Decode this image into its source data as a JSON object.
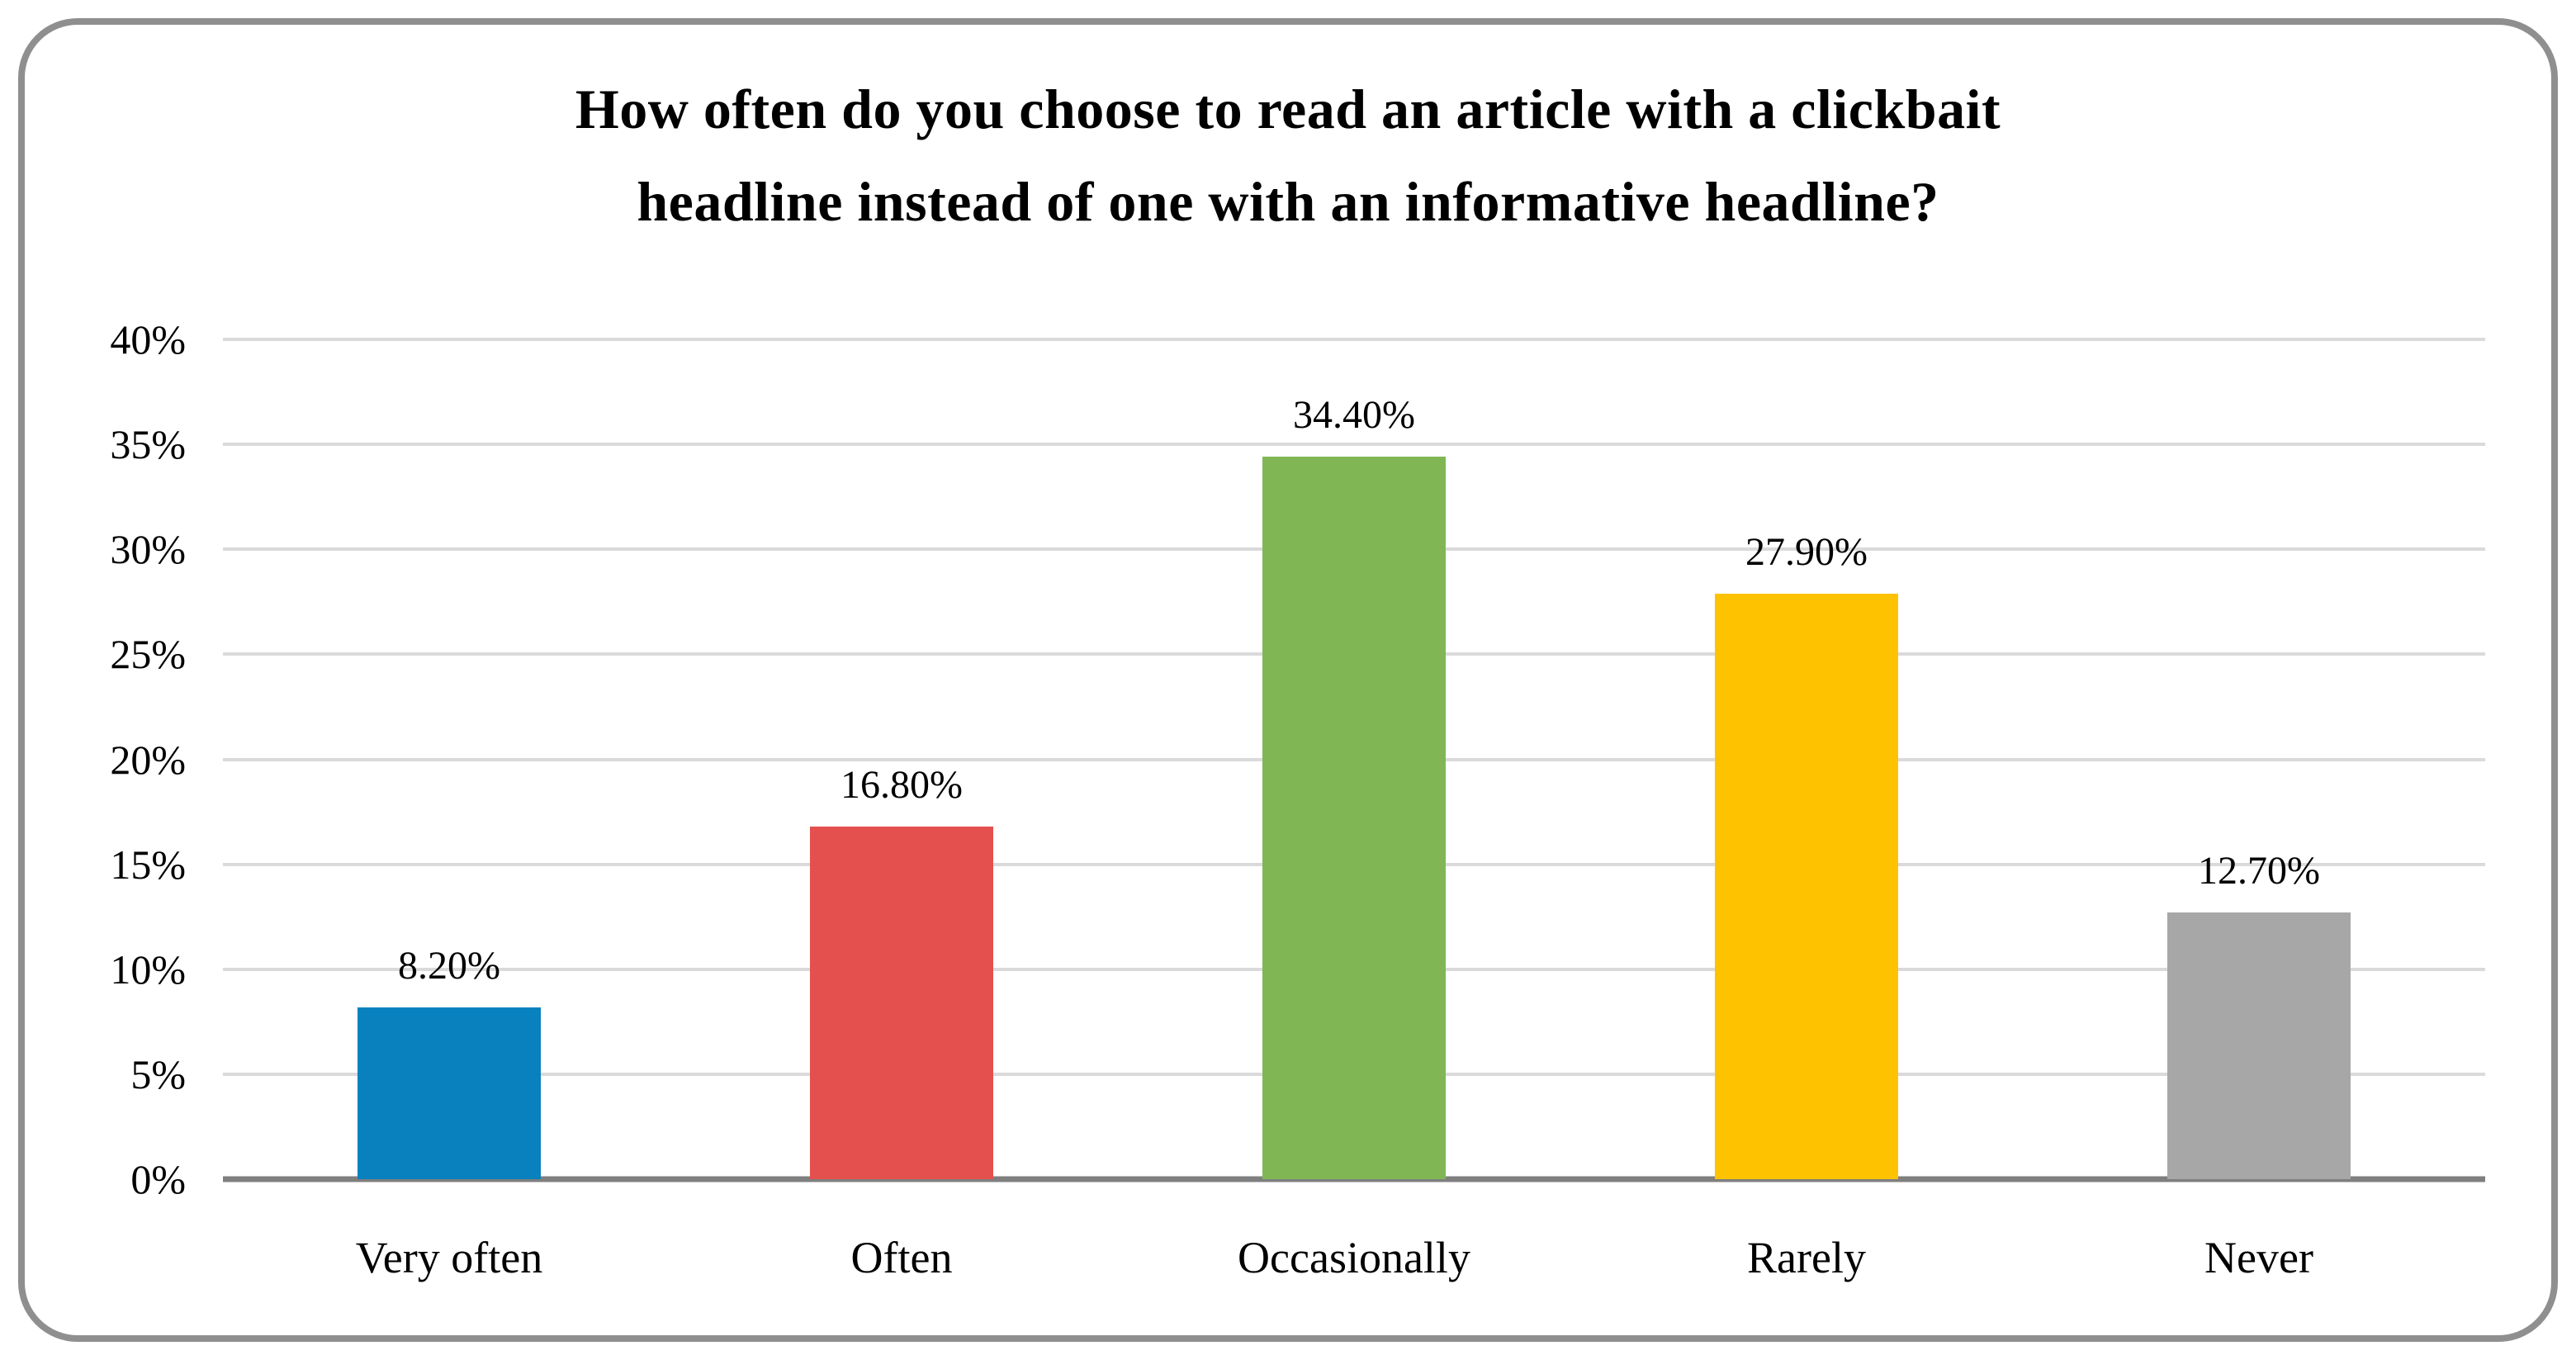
{
  "frame": {
    "border_color": "#8f8f8f"
  },
  "chart_data": {
    "type": "bar",
    "title": "How often do you choose to read an article with a clickbait headline instead of one with an informative headline?",
    "title_lines": [
      "How often do you choose to read an article with a clickbait",
      "headline instead of one with an informative headline?"
    ],
    "categories": [
      "Very often",
      "Often",
      "Occasionally",
      "Rarely",
      "Never"
    ],
    "values": [
      8.2,
      16.8,
      34.4,
      27.9,
      12.7
    ],
    "value_labels": [
      "8.20%",
      "16.80%",
      "34.40%",
      "27.90%",
      "12.70%"
    ],
    "bar_colors": [
      "#0981be",
      "#e4504e",
      "#80b754",
      "#ffc200",
      "#a7a7a7"
    ],
    "ylim": [
      0,
      40
    ],
    "ytick_step": 5,
    "ytick_labels": [
      "0%",
      "5%",
      "10%",
      "15%",
      "20%",
      "25%",
      "30%",
      "35%",
      "40%"
    ],
    "xlabel": "",
    "ylabel": "",
    "grid": "horizontal",
    "gridline_color": "#dadada",
    "axis_line_color": "#7f7f7f",
    "legend_position": "none"
  }
}
